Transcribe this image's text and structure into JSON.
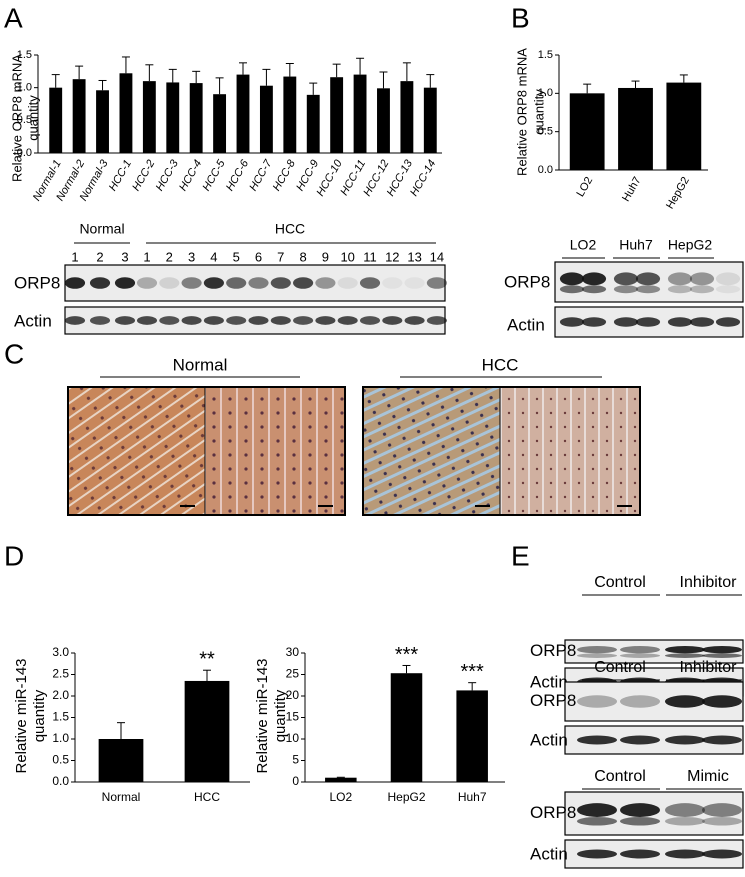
{
  "panel_labels": [
    "A",
    "B",
    "C",
    "D",
    "E"
  ],
  "chart_data": [
    {
      "type": "bar",
      "ylabel_lines": [
        "Relative ORP8 mRNA",
        "quantity"
      ],
      "categories": [
        "Normal-1",
        "Normal-2",
        "Normal-3",
        "HCC-1",
        "HCC-2",
        "HCC-3",
        "HCC-4",
        "HCC-5",
        "HCC-6",
        "HCC-7",
        "HCC-8",
        "HCC-9",
        "HCC-10",
        "HCC-11",
        "HCC-12",
        "HCC-13",
        "HCC-14"
      ],
      "values": [
        1.0,
        1.13,
        0.96,
        1.22,
        1.1,
        1.08,
        1.07,
        0.9,
        1.2,
        1.03,
        1.17,
        0.89,
        1.16,
        1.2,
        0.99,
        1.1,
        1.0
      ],
      "errors": [
        0.2,
        0.2,
        0.15,
        0.25,
        0.25,
        0.2,
        0.18,
        0.25,
        0.18,
        0.25,
        0.2,
        0.18,
        0.2,
        0.25,
        0.25,
        0.28,
        0.2
      ],
      "color": "#000000",
      "ylim": [
        0,
        1.5
      ],
      "yticks": [
        {
          "value": 0,
          "label": "0.0"
        },
        0.5,
        {
          "value": 1,
          "label": "1.0"
        },
        1.5
      ]
    },
    {
      "type": "bar",
      "ylabel_lines": [
        "Relative ORP8 mRNA",
        "quantity"
      ],
      "categories": [
        "LO2",
        "Huh7",
        "HepG2"
      ],
      "values": [
        1.0,
        1.07,
        1.14
      ],
      "errors": [
        0.12,
        0.09,
        0.1
      ],
      "color": "#000000",
      "ylim": [
        0,
        1.5
      ],
      "yticks": [
        {
          "value": 0,
          "label": "0.0"
        },
        0.5,
        {
          "value": 1,
          "label": "1.0"
        },
        1.5
      ]
    },
    {
      "type": "bar",
      "ylabel_lines": [
        "Relative miR-143",
        "quantity"
      ],
      "categories": [
        "Normal",
        "HCC"
      ],
      "values": [
        1.0,
        2.35
      ],
      "errors": [
        0.38,
        0.25
      ],
      "significance": [
        null,
        "**"
      ],
      "color": "#000000",
      "ylim": [
        0,
        3
      ],
      "yticks": [
        {
          "value": 0,
          "label": "0.0"
        },
        0.5,
        {
          "value": 1,
          "label": "1.0"
        },
        1.5,
        {
          "value": 2,
          "label": "2.0"
        },
        2.5,
        {
          "value": 3,
          "label": "3.0"
        }
      ]
    },
    {
      "type": "bar",
      "ylabel_lines": [
        "Relative miR-143",
        "quantity"
      ],
      "categories": [
        "LO2",
        "HepG2",
        "Huh7"
      ],
      "values": [
        1.0,
        25.3,
        21.3
      ],
      "errors": [
        0.1,
        1.8,
        1.8
      ],
      "significance": [
        null,
        "***",
        "***"
      ],
      "color": "#000000",
      "ylim": [
        0,
        30
      ],
      "yticks": [
        0,
        5,
        10,
        15,
        20,
        25,
        30
      ]
    }
  ],
  "blot_a": {
    "groups": [
      "Normal",
      "HCC"
    ],
    "lanes": [
      1,
      2,
      3,
      1,
      2,
      3,
      4,
      5,
      6,
      7,
      8,
      9,
      10,
      11,
      12,
      13,
      14
    ],
    "rows": [
      "ORP8",
      "Actin"
    ]
  },
  "blot_b": {
    "groups": [
      "LO2",
      "Huh7",
      "HepG2"
    ],
    "rows": [
      "ORP8",
      "Actin"
    ]
  },
  "histology": {
    "groups": [
      "Normal",
      "HCC"
    ]
  },
  "blot_e": [
    {
      "groups": [
        "Control",
        "Inhibitor"
      ],
      "rows": [
        "ORP8",
        "Actin"
      ]
    },
    {
      "groups": [
        "Control",
        "Inhibitor"
      ],
      "rows": [
        "ORP8",
        "Actin"
      ]
    },
    {
      "groups": [
        "Control",
        "Mimic"
      ],
      "rows": [
        "ORP8",
        "Actin"
      ]
    }
  ]
}
